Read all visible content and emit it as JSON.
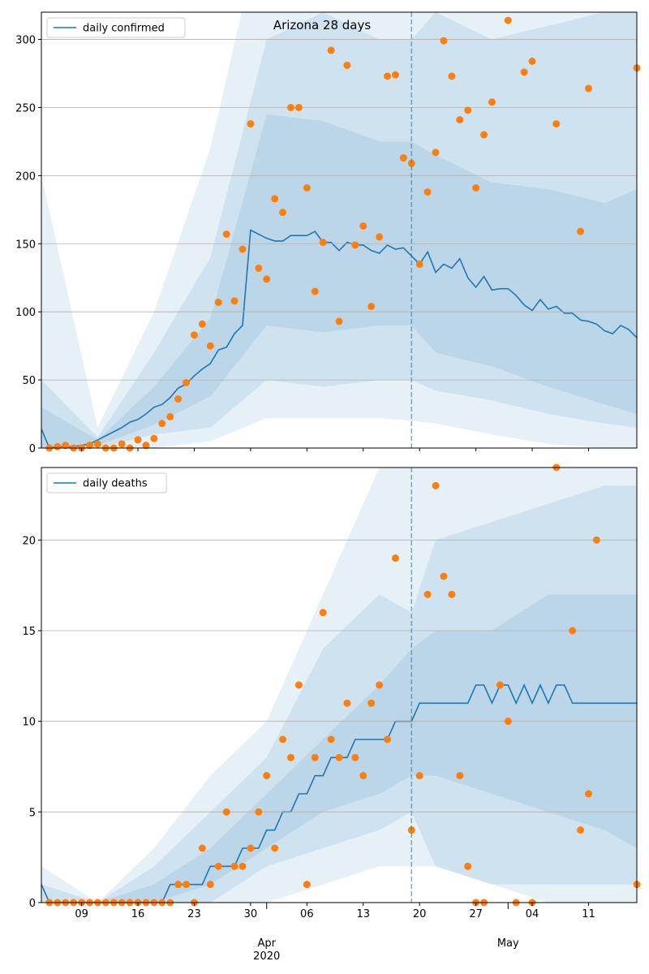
{
  "chart_data": [
    {
      "type": "line",
      "title": "Arizona 28 days",
      "x": [
        "2020-03-04",
        "2020-03-05",
        "2020-03-06",
        "2020-03-07",
        "2020-03-08",
        "2020-03-09",
        "2020-03-10",
        "2020-03-11",
        "2020-03-12",
        "2020-03-13",
        "2020-03-14",
        "2020-03-15",
        "2020-03-16",
        "2020-03-17",
        "2020-03-18",
        "2020-03-19",
        "2020-03-20",
        "2020-03-21",
        "2020-03-22",
        "2020-03-23",
        "2020-03-24",
        "2020-03-25",
        "2020-03-26",
        "2020-03-27",
        "2020-03-28",
        "2020-03-29",
        "2020-03-30",
        "2020-03-31",
        "2020-04-01",
        "2020-04-02",
        "2020-04-03",
        "2020-04-04",
        "2020-04-05",
        "2020-04-06",
        "2020-04-07",
        "2020-04-08",
        "2020-04-09",
        "2020-04-10",
        "2020-04-11",
        "2020-04-12",
        "2020-04-13",
        "2020-04-14",
        "2020-04-15",
        "2020-04-16",
        "2020-04-17",
        "2020-04-18",
        "2020-04-19",
        "2020-04-20",
        "2020-04-21",
        "2020-04-22",
        "2020-04-23",
        "2020-04-24",
        "2020-04-25",
        "2020-04-26",
        "2020-04-27",
        "2020-04-28",
        "2020-04-29",
        "2020-04-30",
        "2020-05-01",
        "2020-05-02",
        "2020-05-03",
        "2020-05-04",
        "2020-05-05",
        "2020-05-06",
        "2020-05-07",
        "2020-05-08",
        "2020-05-09",
        "2020-05-10",
        "2020-05-11",
        "2020-05-12",
        "2020-05-13",
        "2020-05-14",
        "2020-05-15",
        "2020-05-16",
        "2020-05-17"
      ],
      "series": [
        {
          "name": "daily confirmed",
          "color": "#1f77b4",
          "values": [
            14,
            0,
            1,
            1,
            1,
            2,
            3,
            6,
            9,
            12,
            15,
            19,
            21,
            25,
            30,
            32,
            37,
            44,
            47,
            53,
            58,
            62,
            72,
            74,
            84,
            90,
            160,
            157,
            154,
            152,
            152,
            156,
            156,
            156,
            159,
            151,
            151,
            145,
            151,
            149,
            149,
            145,
            143,
            149,
            146,
            147,
            141,
            135,
            144,
            129,
            135,
            132,
            139,
            125,
            118,
            126,
            116,
            117,
            117,
            112,
            105,
            101,
            109,
            102,
            104,
            99,
            99,
            94,
            93,
            91,
            86,
            84,
            90,
            87,
            81
          ]
        }
      ],
      "observed": {
        "color": "#ff7f0e",
        "values": [
          null,
          0,
          1,
          2,
          0,
          0,
          2,
          3,
          0,
          0,
          3,
          0,
          6,
          2,
          7,
          18,
          23,
          36,
          48,
          83,
          91,
          75,
          107,
          157,
          108,
          146,
          238,
          132,
          124,
          183,
          173,
          250,
          250,
          191,
          115,
          151,
          292,
          93,
          281,
          149,
          163,
          104,
          155,
          273,
          274,
          213,
          209,
          135,
          188,
          217,
          299,
          273,
          241,
          248,
          191,
          230,
          254,
          null,
          314,
          null,
          276,
          284,
          null,
          null,
          238,
          null,
          null,
          159,
          264,
          null,
          null,
          null,
          null,
          null,
          279
        ]
      },
      "bands": {
        "color": "#1f77b4",
        "x": [
          "2020-03-04",
          "2020-03-11",
          "2020-03-18",
          "2020-03-25",
          "2020-04-01",
          "2020-04-08",
          "2020-04-15",
          "2020-04-19",
          "2020-04-22",
          "2020-04-29",
          "2020-05-06",
          "2020-05-13",
          "2020-05-17"
        ],
        "ranges": [
          {
            "lower": [
              0,
              0,
              0,
              5,
              22,
              22,
              22,
              20,
              18,
              10,
              3,
              0,
              0
            ],
            "upper": [
              200,
              15,
              100,
              220,
              400,
              400,
              400,
              400,
              400,
              400,
              400,
              400,
              400
            ]
          },
          {
            "lower": [
              0,
              0,
              10,
              15,
              50,
              45,
              50,
              50,
              42,
              35,
              25,
              18,
              15
            ],
            "upper": [
              50,
              8,
              70,
              140,
              300,
              320,
              300,
              300,
              320,
              300,
              310,
              320,
              320
            ]
          },
          {
            "lower": [
              0,
              2,
              17,
              38,
              90,
              85,
              90,
              90,
              70,
              60,
              45,
              32,
              25
            ],
            "upper": [
              30,
              6,
              45,
              95,
              245,
              240,
              225,
              225,
              215,
              195,
              190,
              180,
              190
            ]
          }
        ]
      },
      "forecast_start": "2020-04-19",
      "xlim": [
        "2020-03-04",
        "2020-05-17"
      ],
      "xticks": [
        "2020-03-09",
        "2020-03-16",
        "2020-03-23",
        "2020-03-30",
        "2020-04-06",
        "2020-04-13",
        "2020-04-20",
        "2020-04-27",
        "2020-05-04",
        "2020-05-11"
      ],
      "ylim": [
        0,
        320
      ],
      "yticks": [
        0,
        50,
        100,
        150,
        200,
        250,
        300
      ],
      "grid": true,
      "legend": "upper left"
    },
    {
      "type": "line",
      "x": [
        "2020-03-04",
        "2020-03-05",
        "2020-03-06",
        "2020-03-07",
        "2020-03-08",
        "2020-03-09",
        "2020-03-10",
        "2020-03-11",
        "2020-03-12",
        "2020-03-13",
        "2020-03-14",
        "2020-03-15",
        "2020-03-16",
        "2020-03-17",
        "2020-03-18",
        "2020-03-19",
        "2020-03-20",
        "2020-03-21",
        "2020-03-22",
        "2020-03-23",
        "2020-03-24",
        "2020-03-25",
        "2020-03-26",
        "2020-03-27",
        "2020-03-28",
        "2020-03-29",
        "2020-03-30",
        "2020-03-31",
        "2020-04-01",
        "2020-04-02",
        "2020-04-03",
        "2020-04-04",
        "2020-04-05",
        "2020-04-06",
        "2020-04-07",
        "2020-04-08",
        "2020-04-09",
        "2020-04-10",
        "2020-04-11",
        "2020-04-12",
        "2020-04-13",
        "2020-04-14",
        "2020-04-15",
        "2020-04-16",
        "2020-04-17",
        "2020-04-18",
        "2020-04-19",
        "2020-04-20",
        "2020-04-21",
        "2020-04-22",
        "2020-04-23",
        "2020-04-24",
        "2020-04-25",
        "2020-04-26",
        "2020-04-27",
        "2020-04-28",
        "2020-04-29",
        "2020-04-30",
        "2020-05-01",
        "2020-05-02",
        "2020-05-03",
        "2020-05-04",
        "2020-05-05",
        "2020-05-06",
        "2020-05-07",
        "2020-05-08",
        "2020-05-09",
        "2020-05-10",
        "2020-05-11",
        "2020-05-12",
        "2020-05-13",
        "2020-05-14",
        "2020-05-15",
        "2020-05-16",
        "2020-05-17"
      ],
      "series": [
        {
          "name": "daily deaths",
          "color": "#1f77b4",
          "values": [
            1,
            0,
            0,
            0,
            0,
            0,
            0,
            0,
            0,
            0,
            0,
            0,
            0,
            0,
            0,
            0,
            1,
            1,
            1,
            1,
            1,
            2,
            2,
            2,
            2,
            3,
            3,
            3,
            4,
            4,
            5,
            5,
            6,
            6,
            7,
            7,
            8,
            8,
            8,
            9,
            9,
            9,
            9,
            9,
            10,
            10,
            10,
            11,
            11,
            11,
            11,
            11,
            11,
            11,
            12,
            12,
            11,
            12,
            12,
            11,
            12,
            11,
            12,
            11,
            12,
            12,
            11,
            11,
            11,
            11,
            11,
            11,
            11,
            11,
            11
          ]
        }
      ],
      "observed": {
        "color": "#ff7f0e",
        "values": [
          null,
          0,
          0,
          0,
          0,
          0,
          0,
          0,
          0,
          0,
          0,
          0,
          0,
          0,
          0,
          0,
          0,
          1,
          1,
          0,
          3,
          1,
          2,
          5,
          2,
          2,
          3,
          5,
          7,
          3,
          9,
          8,
          12,
          1,
          8,
          16,
          9,
          8,
          11,
          8,
          7,
          11,
          12,
          9,
          19,
          null,
          4,
          7,
          17,
          23,
          18,
          17,
          7,
          2,
          0,
          0,
          null,
          12,
          10,
          0,
          null,
          0,
          null,
          null,
          24,
          null,
          15,
          4,
          6,
          20,
          null,
          null,
          null,
          null,
          1
        ]
      },
      "bands": {
        "color": "#1f77b4",
        "x": [
          "2020-03-04",
          "2020-03-11",
          "2020-03-18",
          "2020-03-25",
          "2020-04-01",
          "2020-04-08",
          "2020-04-15",
          "2020-04-19",
          "2020-04-22",
          "2020-04-29",
          "2020-05-06",
          "2020-05-13",
          "2020-05-17"
        ],
        "ranges": [
          {
            "lower": [
              0,
              0,
              0,
              0,
              0,
              1,
              2,
              2,
              2,
              1,
              1,
              1,
              1
            ],
            "upper": [
              2,
              0,
              3,
              7,
              10,
              17,
              24,
              26,
              26,
              26,
              26,
              26,
              26
            ]
          },
          {
            "lower": [
              0,
              0,
              0,
              0,
              2,
              3,
              4,
              5,
              2,
              1,
              0,
              0,
              0
            ],
            "upper": [
              1,
              0,
              2,
              5,
              8,
              14,
              17,
              16,
              20,
              21,
              22,
              23,
              23
            ]
          },
          {
            "lower": [
              0,
              0,
              0,
              1,
              3,
              5,
              6,
              7,
              7,
              6,
              5,
              4,
              3
            ],
            "upper": [
              0,
              0,
              1,
              3,
              6,
              9,
              12,
              14,
              15,
              15,
              17,
              17,
              17
            ]
          }
        ]
      },
      "forecast_start": "2020-04-19",
      "xlim": [
        "2020-03-04",
        "2020-05-17"
      ],
      "xticks": [
        {
          "value": "2020-03-09",
          "label": "09"
        },
        {
          "value": "2020-03-16",
          "label": "16"
        },
        {
          "value": "2020-03-23",
          "label": "23"
        },
        {
          "value": "2020-03-30",
          "label": "30"
        },
        {
          "value": "2020-04-06",
          "label": "06"
        },
        {
          "value": "2020-04-13",
          "label": "13"
        },
        {
          "value": "2020-04-20",
          "label": "20"
        },
        {
          "value": "2020-04-27",
          "label": "27"
        },
        {
          "value": "2020-05-04",
          "label": "04"
        },
        {
          "value": "2020-05-11",
          "label": "11"
        }
      ],
      "xticks_major": [
        {
          "value": "2020-04-01",
          "label": "Apr\n2020"
        },
        {
          "value": "2020-05-01",
          "label": "May"
        }
      ],
      "ylim": [
        0,
        24
      ],
      "yticks": [
        0,
        5,
        10,
        15,
        20
      ],
      "grid": true,
      "legend": "upper left"
    }
  ]
}
